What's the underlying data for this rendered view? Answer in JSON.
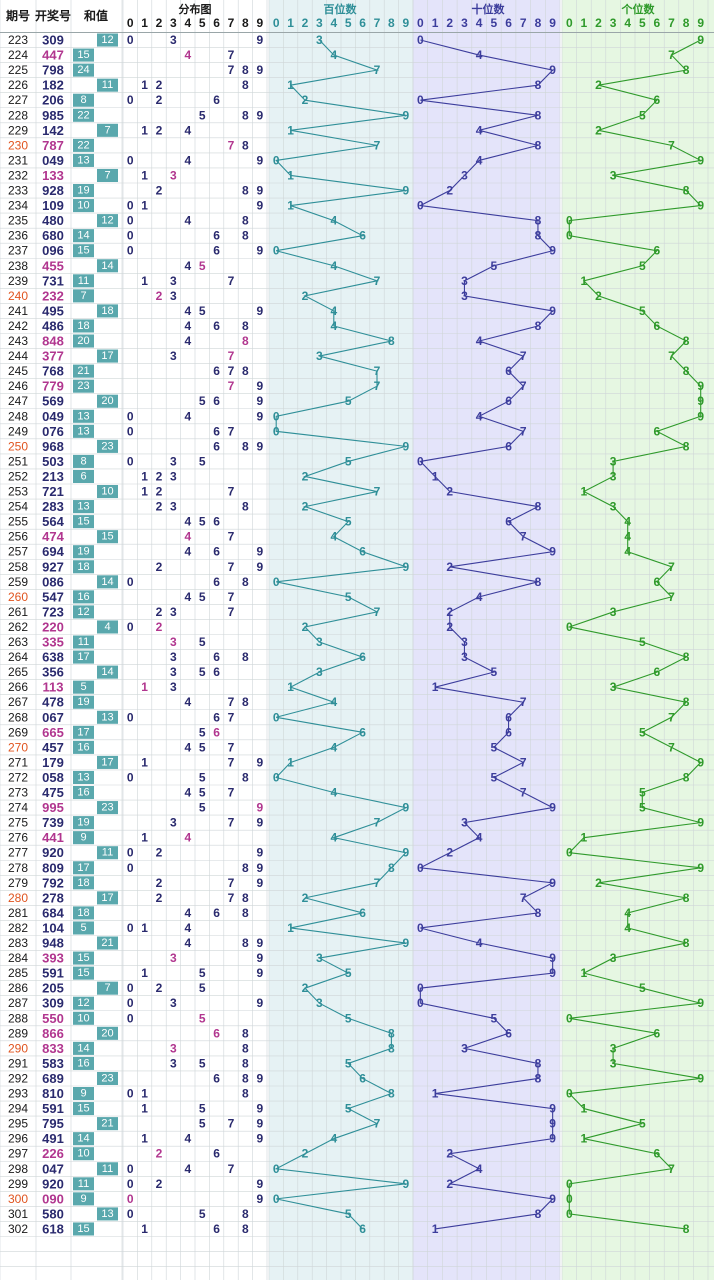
{
  "chart_data": {
    "type": "table",
    "headers": {
      "period": "期号",
      "draw": "开奖号",
      "sum": "和值",
      "distribution": "分布图",
      "hundreds": "百位数",
      "tens": "十位数",
      "units": "个位数"
    },
    "digit_labels": [
      "0",
      "1",
      "2",
      "3",
      "4",
      "5",
      "6",
      "7",
      "8",
      "9"
    ],
    "rows": [
      {
        "period": "223",
        "draw": "309"
      },
      {
        "period": "224",
        "draw": "447"
      },
      {
        "period": "225",
        "draw": "798"
      },
      {
        "period": "226",
        "draw": "182"
      },
      {
        "period": "227",
        "draw": "206"
      },
      {
        "period": "228",
        "draw": "985"
      },
      {
        "period": "229",
        "draw": "142"
      },
      {
        "period": "230",
        "draw": "787"
      },
      {
        "period": "231",
        "draw": "049"
      },
      {
        "period": "232",
        "draw": "133"
      },
      {
        "period": "233",
        "draw": "928"
      },
      {
        "period": "234",
        "draw": "109"
      },
      {
        "period": "235",
        "draw": "480"
      },
      {
        "period": "236",
        "draw": "680"
      },
      {
        "period": "237",
        "draw": "096"
      },
      {
        "period": "238",
        "draw": "455"
      },
      {
        "period": "239",
        "draw": "731"
      },
      {
        "period": "240",
        "draw": "232"
      },
      {
        "period": "241",
        "draw": "495"
      },
      {
        "period": "242",
        "draw": "486"
      },
      {
        "period": "243",
        "draw": "848"
      },
      {
        "period": "244",
        "draw": "377"
      },
      {
        "period": "245",
        "draw": "768"
      },
      {
        "period": "246",
        "draw": "779"
      },
      {
        "period": "247",
        "draw": "569"
      },
      {
        "period": "248",
        "draw": "049"
      },
      {
        "period": "249",
        "draw": "076"
      },
      {
        "period": "250",
        "draw": "968"
      },
      {
        "period": "251",
        "draw": "503"
      },
      {
        "period": "252",
        "draw": "213"
      },
      {
        "period": "253",
        "draw": "721"
      },
      {
        "period": "254",
        "draw": "283"
      },
      {
        "period": "255",
        "draw": "564"
      },
      {
        "period": "256",
        "draw": "474"
      },
      {
        "period": "257",
        "draw": "694"
      },
      {
        "period": "258",
        "draw": "927"
      },
      {
        "period": "259",
        "draw": "086"
      },
      {
        "period": "260",
        "draw": "547"
      },
      {
        "period": "261",
        "draw": "723"
      },
      {
        "period": "262",
        "draw": "220"
      },
      {
        "period": "263",
        "draw": "335"
      },
      {
        "period": "264",
        "draw": "638"
      },
      {
        "period": "265",
        "draw": "356"
      },
      {
        "period": "266",
        "draw": "113"
      },
      {
        "period": "267",
        "draw": "478"
      },
      {
        "period": "268",
        "draw": "067"
      },
      {
        "period": "269",
        "draw": "665"
      },
      {
        "period": "270",
        "draw": "457"
      },
      {
        "period": "271",
        "draw": "179"
      },
      {
        "period": "272",
        "draw": "058"
      },
      {
        "period": "273",
        "draw": "475"
      },
      {
        "period": "274",
        "draw": "995"
      },
      {
        "period": "275",
        "draw": "739"
      },
      {
        "period": "276",
        "draw": "441"
      },
      {
        "period": "277",
        "draw": "920"
      },
      {
        "period": "278",
        "draw": "809"
      },
      {
        "period": "279",
        "draw": "792"
      },
      {
        "period": "280",
        "draw": "278"
      },
      {
        "period": "281",
        "draw": "684"
      },
      {
        "period": "282",
        "draw": "104"
      },
      {
        "period": "283",
        "draw": "948"
      },
      {
        "period": "284",
        "draw": "393"
      },
      {
        "period": "285",
        "draw": "591"
      },
      {
        "period": "286",
        "draw": "205"
      },
      {
        "period": "287",
        "draw": "309"
      },
      {
        "period": "288",
        "draw": "550"
      },
      {
        "period": "289",
        "draw": "866"
      },
      {
        "period": "290",
        "draw": "833"
      },
      {
        "period": "291",
        "draw": "583"
      },
      {
        "period": "292",
        "draw": "689"
      },
      {
        "period": "293",
        "draw": "810"
      },
      {
        "period": "294",
        "draw": "591"
      },
      {
        "period": "295",
        "draw": "795"
      },
      {
        "period": "296",
        "draw": "491"
      },
      {
        "period": "297",
        "draw": "226"
      },
      {
        "period": "298",
        "draw": "047"
      },
      {
        "period": "299",
        "draw": "920"
      },
      {
        "period": "300",
        "draw": "090"
      },
      {
        "period": "301",
        "draw": "580"
      },
      {
        "period": "302",
        "draw": "618"
      }
    ],
    "sums": [
      "12",
      "15",
      "24",
      "11",
      "8",
      "22",
      "7",
      "22",
      "13",
      "7",
      "19",
      "10",
      "12",
      "14",
      "15",
      "14",
      "11",
      "7",
      "18",
      "18",
      "20",
      "17",
      "21",
      "23",
      "20",
      "13",
      "13",
      "23",
      "8",
      "6",
      "10",
      "13",
      "15",
      "15",
      "19",
      "18",
      "14",
      "16",
      "12",
      "4",
      "11",
      "17",
      "14",
      "5",
      "19",
      "13",
      "17",
      "16",
      "17",
      "13",
      "16",
      "23",
      "19",
      "9",
      "11",
      "17",
      "18",
      "17",
      "18",
      "5",
      "21",
      "15",
      "15",
      "7",
      "12",
      "10",
      "20",
      "14",
      "16",
      "23",
      "9",
      "15",
      "21",
      "14",
      "10",
      "11",
      "11",
      "9",
      "13",
      "15"
    ],
    "highlight_periods": [
      "230",
      "240",
      "250",
      "260",
      "270",
      "280",
      "290",
      "300"
    ],
    "colors": {
      "header_text": "#1a1a1a",
      "period_text": "#1a1a1a",
      "period_highlight": "#e0541f",
      "draw_text": "#2a2a6e",
      "draw_pair_text": "#b1368f",
      "sum_box": "#5aa8ad",
      "dist_text": "#2a2a6e",
      "dist_repeat": "#b1368f",
      "hundreds_bg": "#e6f2f4",
      "hundreds_line": "#2f8f98",
      "tens_bg": "#e4e4fa",
      "tens_line": "#3c3d9c",
      "units_bg": "#e6f7e2",
      "units_line": "#2f9a2b",
      "grid": "#cfd6d8"
    }
  }
}
